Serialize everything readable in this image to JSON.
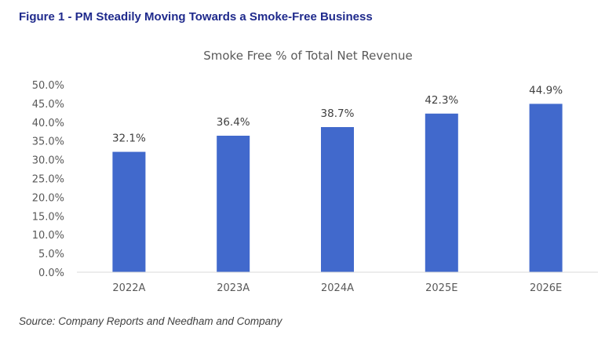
{
  "figure_title": "Figure 1 - PM Steadily Moving Towards a Smoke-Free Business",
  "source": "Source: Company Reports and Needham and Company",
  "colors": {
    "bar": "#4169cc",
    "title": "#1f2a8c",
    "axis_text": "#595959",
    "baseline": "#d9d9d9"
  },
  "chart_data": {
    "type": "bar",
    "title": "Smoke Free % of Total Net Revenue",
    "xlabel": "",
    "ylabel": "",
    "categories": [
      "2022A",
      "2023A",
      "2024A",
      "2025E",
      "2026E"
    ],
    "values": [
      32.1,
      36.4,
      38.7,
      42.3,
      44.9
    ],
    "data_labels": [
      "32.1%",
      "36.4%",
      "38.7%",
      "42.3%",
      "44.9%"
    ],
    "ylim": [
      0,
      50
    ],
    "yticks": [
      0,
      5,
      10,
      15,
      20,
      25,
      30,
      35,
      40,
      45,
      50
    ],
    "ytick_labels": [
      "0.0%",
      "5.0%",
      "10.0%",
      "15.0%",
      "20.0%",
      "25.0%",
      "30.0%",
      "35.0%",
      "40.0%",
      "45.0%",
      "50.0%"
    ],
    "grid": false,
    "legend": "none"
  }
}
